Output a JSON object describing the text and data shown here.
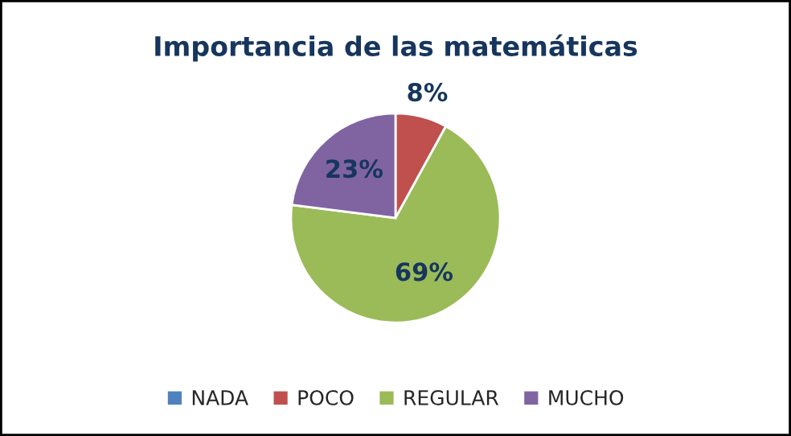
{
  "chart_data": {
    "type": "pie",
    "title": "Importancia de las matemáticas",
    "categories": [
      "NADA",
      "POCO",
      "REGULAR",
      "MUCHO"
    ],
    "values": [
      0,
      8,
      69,
      23
    ],
    "colors": [
      "#4f81bd",
      "#c0504d",
      "#9bbb59",
      "#8064a2"
    ],
    "value_labels": [
      null,
      "8%",
      "69%",
      "23%"
    ],
    "legend": "bottom"
  }
}
